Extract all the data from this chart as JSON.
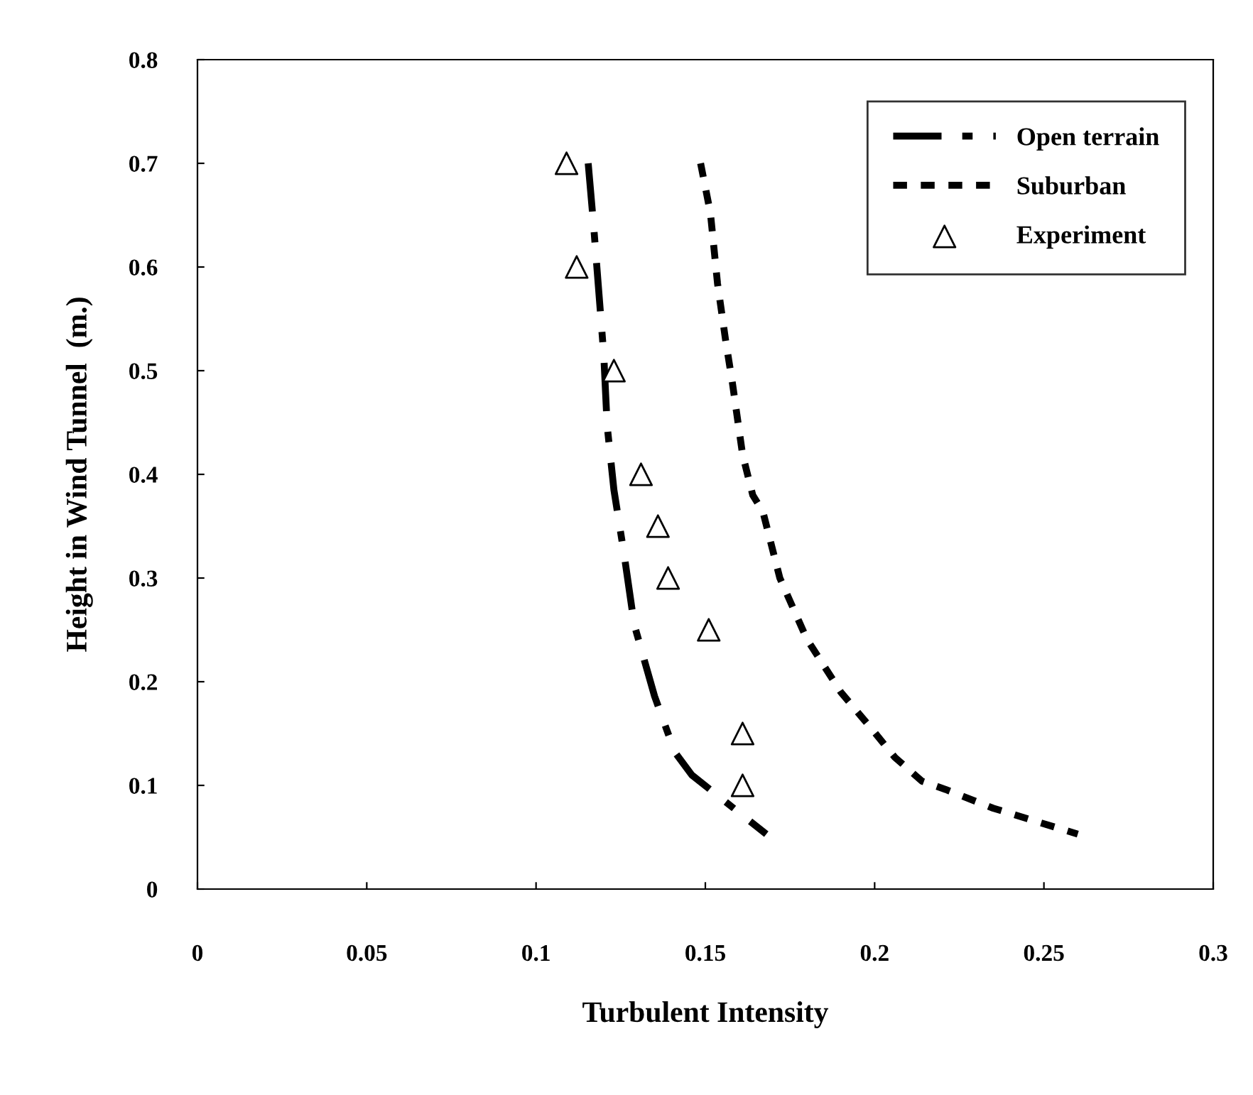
{
  "chart_data": {
    "type": "line",
    "xlabel": "Turbulent Intensity",
    "ylabel": "Height in Wind Tunnel  (m.)",
    "xlim": [
      0,
      0.3
    ],
    "xticks": [
      0,
      0.05,
      0.1,
      0.15,
      0.2,
      0.25,
      0.3
    ],
    "ylim": [
      0,
      0.8
    ],
    "yticks": [
      0,
      0.1,
      0.2,
      0.3,
      0.4,
      0.5,
      0.6,
      0.7,
      0.8
    ],
    "grid": false,
    "legend": "top right",
    "series": [
      {
        "name": "Open terrain",
        "color": "#000000",
        "line_style": "dashed",
        "marker": "none",
        "x": [
          0.1154,
          0.117,
          0.12,
          0.121,
          0.123,
          0.126,
          0.129,
          0.135,
          0.141,
          0.146,
          0.168
        ],
        "values": [
          0.7,
          0.64,
          0.515,
          0.447,
          0.385,
          0.323,
          0.255,
          0.186,
          0.132,
          0.11,
          0.053
        ]
      },
      {
        "name": "Suburban",
        "color": "#000000",
        "line_style": "dotted",
        "marker": "none",
        "x": [
          0.1486,
          0.1515,
          0.1536,
          0.156,
          0.158,
          0.161,
          0.164,
          0.167,
          0.172,
          0.18,
          0.19,
          0.199,
          0.206,
          0.214,
          0.221,
          0.235,
          0.246,
          0.26
        ],
        "values": [
          0.7,
          0.652,
          0.584,
          0.529,
          0.488,
          0.419,
          0.38,
          0.364,
          0.3,
          0.241,
          0.19,
          0.155,
          0.127,
          0.104,
          0.096,
          0.078,
          0.067,
          0.053
        ]
      },
      {
        "name": "Experiment",
        "type": "scatter",
        "color": "#000000",
        "marker": "triangle",
        "x": [
          0.109,
          0.112,
          0.123,
          0.131,
          0.136,
          0.139,
          0.151,
          0.161,
          0.161
        ],
        "values": [
          0.7,
          0.6,
          0.5,
          0.4,
          0.35,
          0.3,
          0.25,
          0.15,
          0.1
        ]
      }
    ]
  }
}
